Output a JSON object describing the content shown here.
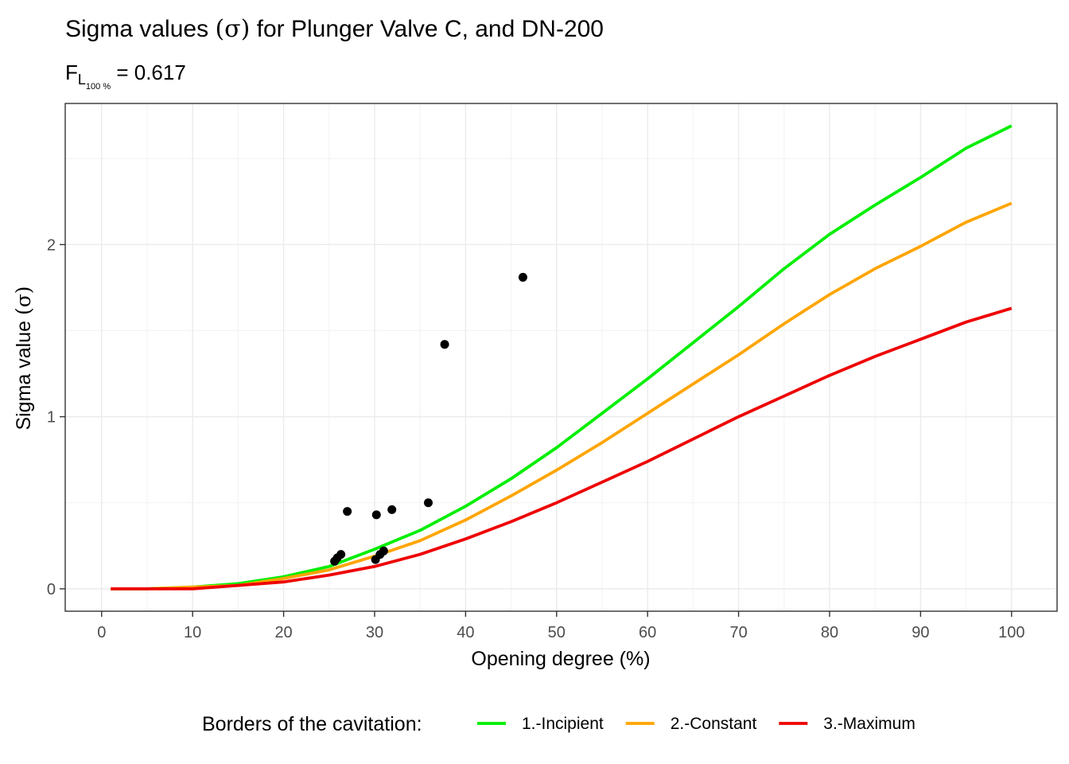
{
  "chart_data": {
    "type": "line",
    "title_prefix": "Sigma values ",
    "title_symbol": "(σ)",
    "title_suffix": " for Plunger Valve C, and DN-200",
    "subtitle_base": "F",
    "subtitle_sub": "L",
    "subtitle_subsub": "100 %",
    "subtitle_value": " = 0.617",
    "xlabel": "Opening degree (%)",
    "ylabel_text": "Sigma value ",
    "ylabel_symbol": "(σ)",
    "xlim": [
      -4,
      105
    ],
    "ylim": [
      -0.13,
      2.82
    ],
    "x_ticks": [
      0,
      10,
      20,
      30,
      40,
      50,
      60,
      70,
      80,
      90,
      100
    ],
    "y_ticks": [
      0,
      1,
      2
    ],
    "grid": true,
    "legend_position": "bottom",
    "legend_title": "Borders of the cavitation:",
    "x": [
      1,
      5,
      10,
      15,
      20,
      25,
      30,
      35,
      40,
      45,
      50,
      55,
      60,
      65,
      70,
      75,
      80,
      85,
      90,
      95,
      100
    ],
    "series": [
      {
        "name": "1.-Incipient",
        "color": "#00ee00",
        "values": [
          0.0,
          0.0,
          0.01,
          0.03,
          0.07,
          0.13,
          0.23,
          0.34,
          0.48,
          0.64,
          0.82,
          1.02,
          1.22,
          1.43,
          1.64,
          1.86,
          2.06,
          2.23,
          2.39,
          2.56,
          2.69
        ]
      },
      {
        "name": "2.-Constant",
        "color": "#ffa500",
        "values": [
          0.0,
          0.0,
          0.01,
          0.02,
          0.06,
          0.11,
          0.19,
          0.28,
          0.4,
          0.54,
          0.69,
          0.85,
          1.02,
          1.19,
          1.36,
          1.54,
          1.71,
          1.86,
          1.99,
          2.13,
          2.24
        ]
      },
      {
        "name": "3.-Maximum",
        "color": "#ee0000",
        "values": [
          0.0,
          0.0,
          0.0,
          0.02,
          0.04,
          0.08,
          0.13,
          0.2,
          0.29,
          0.39,
          0.5,
          0.62,
          0.74,
          0.87,
          1.0,
          1.12,
          1.24,
          1.35,
          1.45,
          1.55,
          1.63
        ]
      }
    ],
    "points": [
      {
        "x": 25.6,
        "y": 0.16
      },
      {
        "x": 25.9,
        "y": 0.18
      },
      {
        "x": 26.3,
        "y": 0.2
      },
      {
        "x": 27.0,
        "y": 0.45
      },
      {
        "x": 30.1,
        "y": 0.17
      },
      {
        "x": 30.2,
        "y": 0.43
      },
      {
        "x": 30.6,
        "y": 0.2
      },
      {
        "x": 31.0,
        "y": 0.22
      },
      {
        "x": 31.9,
        "y": 0.46
      },
      {
        "x": 35.9,
        "y": 0.5
      },
      {
        "x": 37.7,
        "y": 1.42
      },
      {
        "x": 46.3,
        "y": 1.81
      }
    ]
  }
}
